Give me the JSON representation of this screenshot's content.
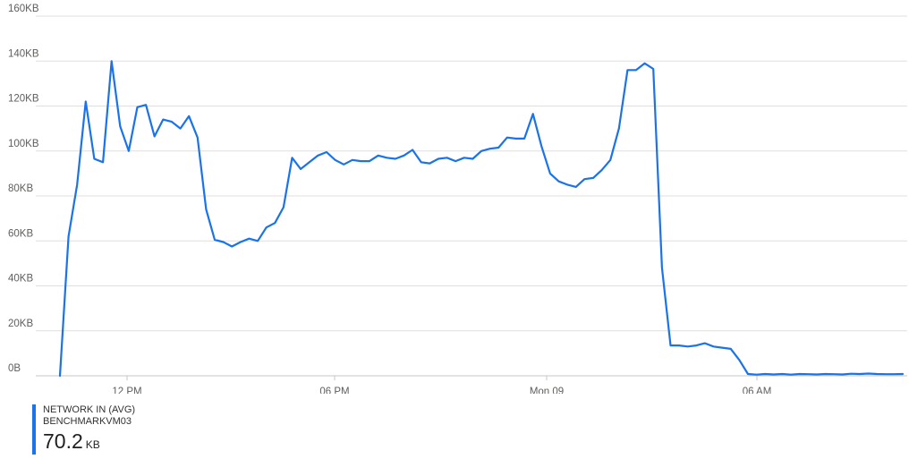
{
  "chart_data": {
    "type": "line",
    "title": "",
    "xlabel": "",
    "ylabel": "",
    "ylim": [
      0,
      160
    ],
    "y_unit": "KB",
    "y_ticks": [
      "0B",
      "20KB",
      "40KB",
      "60KB",
      "80KB",
      "100KB",
      "120KB",
      "140KB",
      "160KB"
    ],
    "x_ticks": [
      "12 PM",
      "06 PM",
      "Mon 09",
      "06 AM"
    ],
    "grid": true,
    "series": [
      {
        "name": "NETWORK IN (AVG)",
        "color": "#1a73e8",
        "values": [
          0,
          62,
          85,
          122,
          96.5,
          95,
          140,
          111,
          100,
          119.5,
          120.5,
          106.5,
          114,
          113,
          110,
          115.5,
          106,
          74,
          60.5,
          59.5,
          57.5,
          59.5,
          61,
          60,
          66,
          68,
          75,
          97,
          92,
          95,
          98,
          99.5,
          96,
          94,
          96,
          95.5,
          95.5,
          98,
          97,
          96.5,
          98,
          100.5,
          95,
          94.5,
          96.5,
          97,
          95.5,
          97,
          96.5,
          100,
          101,
          101.5,
          106,
          105.5,
          105.5,
          116.5,
          102,
          90,
          86.5,
          85,
          84,
          87.5,
          88,
          91.5,
          96,
          110,
          136,
          136,
          139,
          136.5,
          48,
          13.5,
          13.5,
          13,
          13.5,
          14.5,
          13,
          12.5,
          12,
          7,
          0.8,
          0.5,
          0.8,
          0.6,
          0.8,
          0.5,
          0.8,
          0.7,
          0.6,
          0.8,
          0.7,
          0.6,
          0.9,
          0.8,
          1.0,
          0.8,
          0.7,
          0.7,
          0.8
        ]
      }
    ]
  },
  "legend": {
    "title": "NETWORK IN (AVG)",
    "resource": "BENCHMARKVM03",
    "value": "70.2",
    "unit": "KB"
  }
}
